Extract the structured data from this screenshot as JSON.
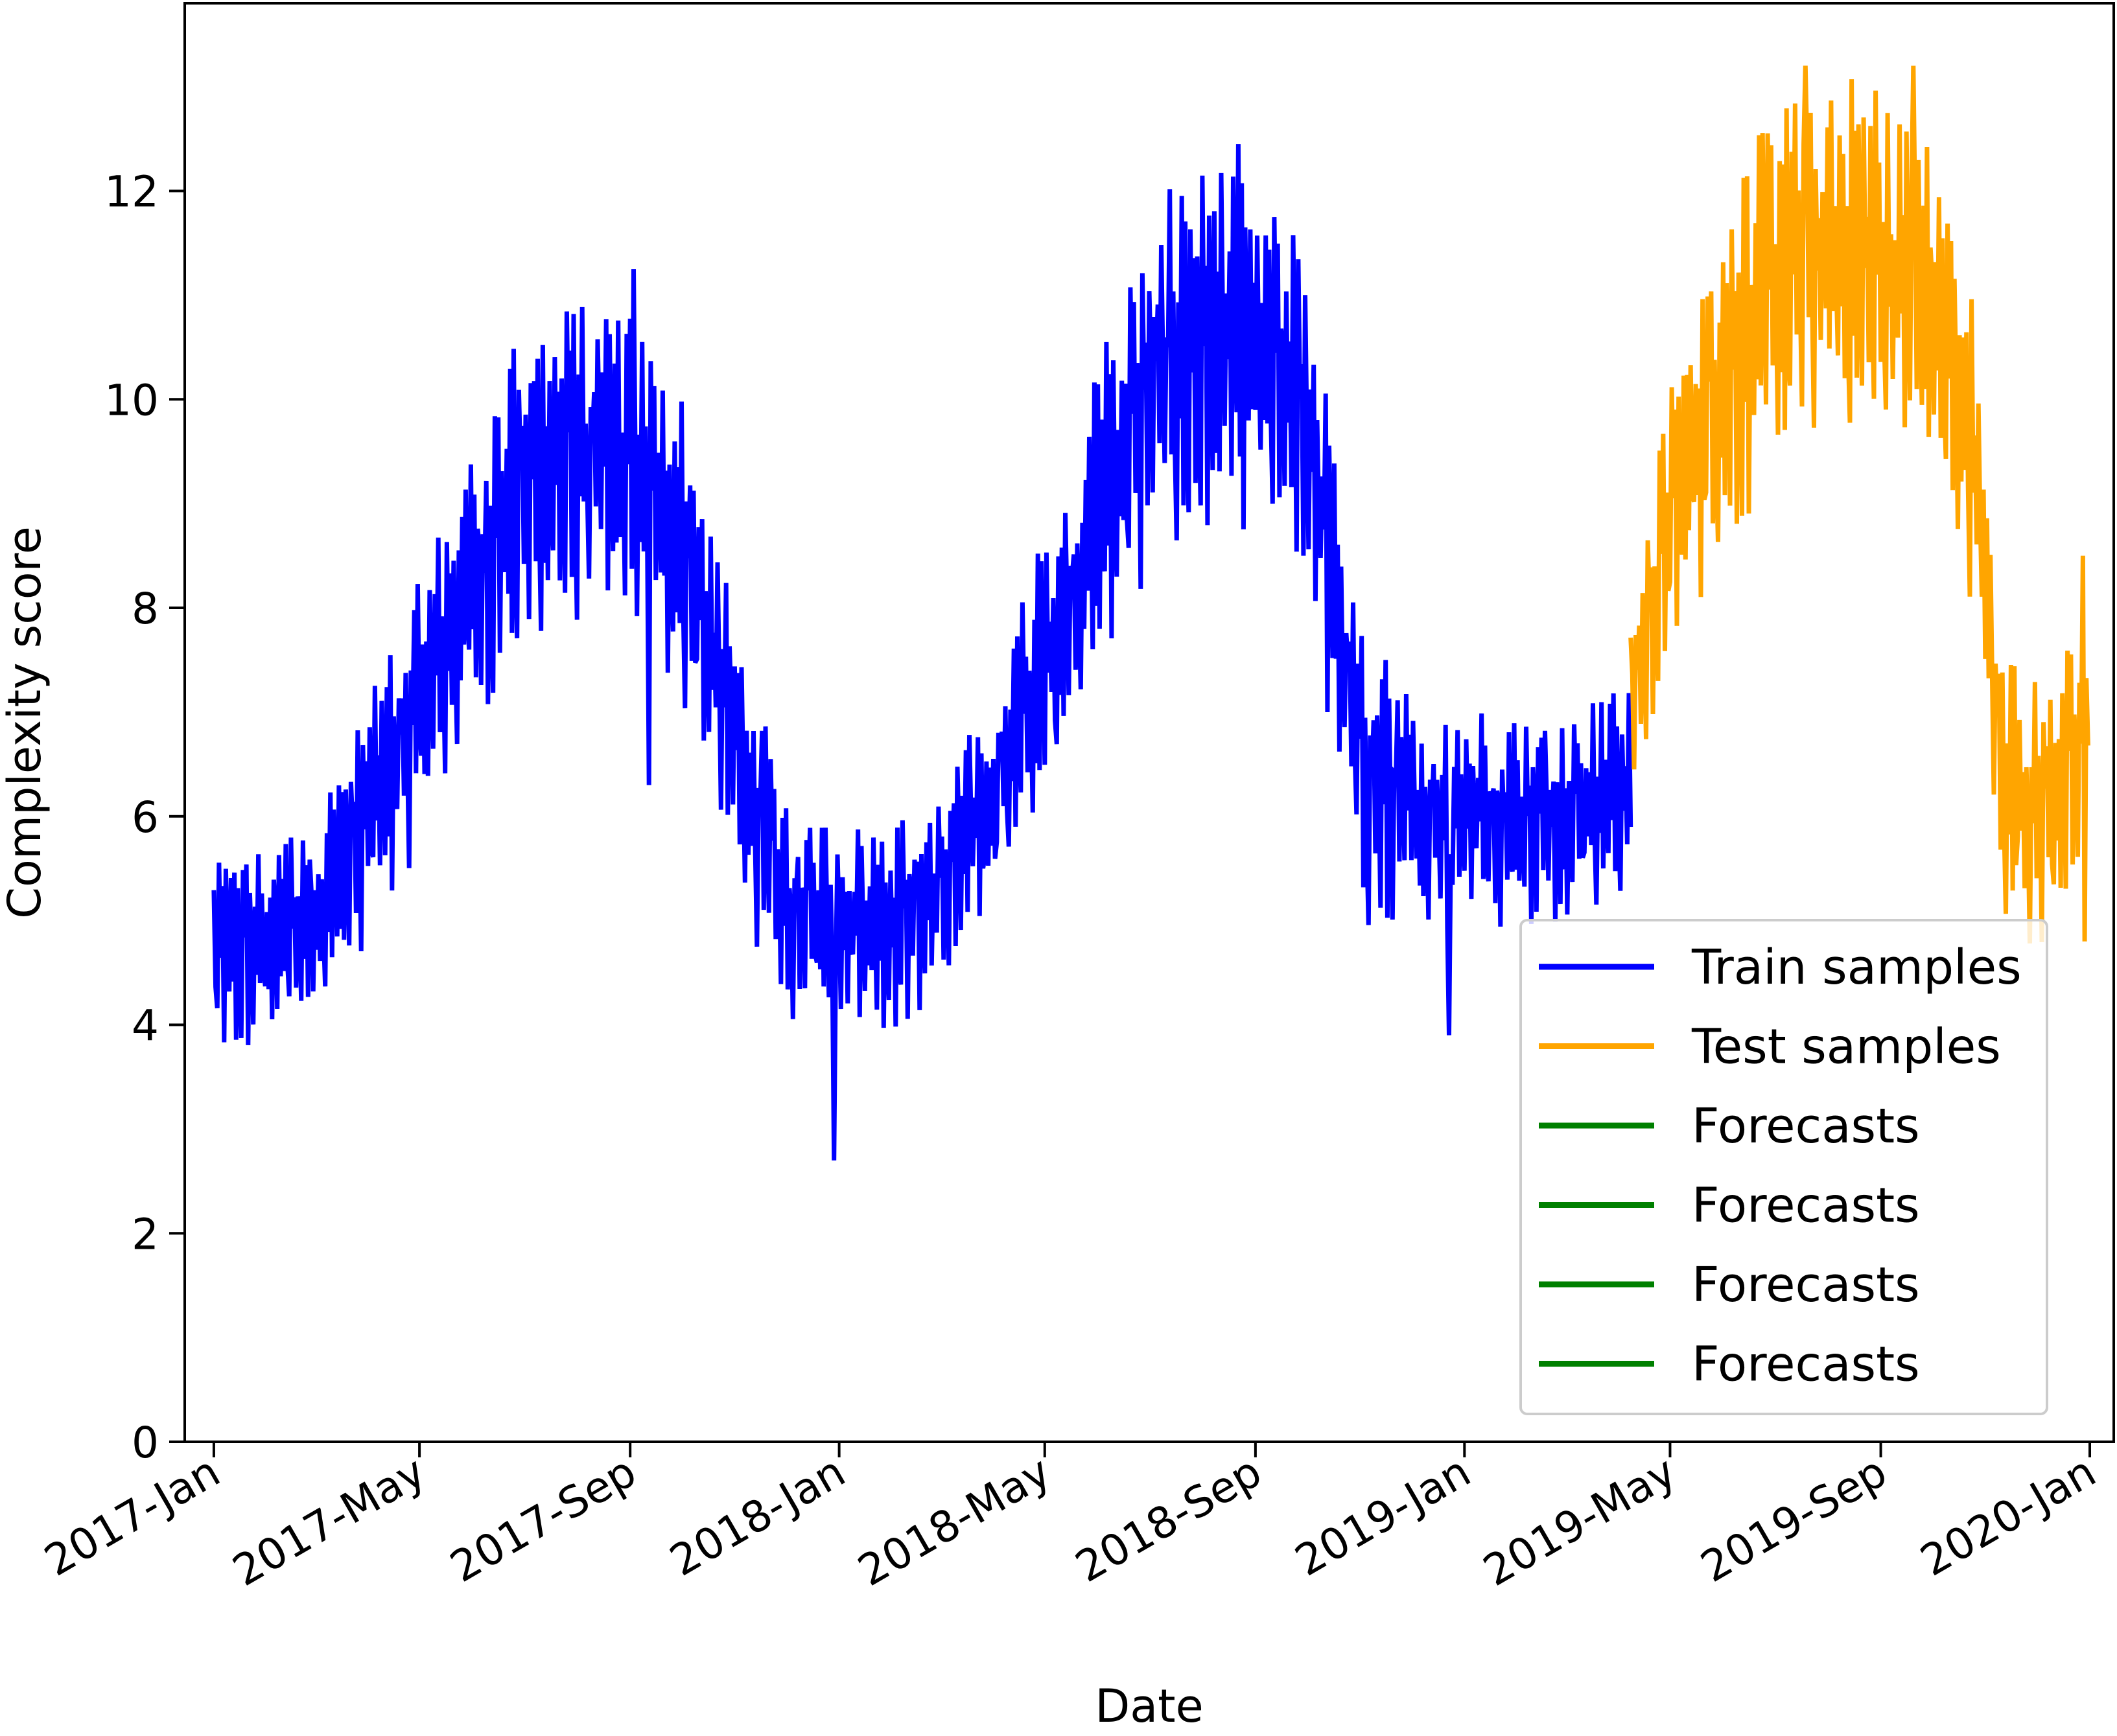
{
  "chart_data": {
    "type": "line",
    "title": "",
    "xlabel": "Date",
    "ylabel": "Complexity score",
    "xlim": [
      "2016-12-15",
      "2020-01-15"
    ],
    "ylim": [
      0,
      13.8
    ],
    "x_ticks": [
      {
        "date": "2017-01-01",
        "label": "2017-Jan"
      },
      {
        "date": "2017-05-01",
        "label": "2017-May"
      },
      {
        "date": "2017-09-01",
        "label": "2017-Sep"
      },
      {
        "date": "2018-01-01",
        "label": "2018-Jan"
      },
      {
        "date": "2018-05-01",
        "label": "2018-May"
      },
      {
        "date": "2018-09-01",
        "label": "2018-Sep"
      },
      {
        "date": "2019-01-01",
        "label": "2019-Jan"
      },
      {
        "date": "2019-05-01",
        "label": "2019-May"
      },
      {
        "date": "2019-09-01",
        "label": "2019-Sep"
      },
      {
        "date": "2020-01-01",
        "label": "2020-Jan"
      }
    ],
    "y_ticks": [
      0,
      2,
      4,
      6,
      8,
      10,
      12
    ],
    "grid": false,
    "legend_position": "lower-right",
    "series": [
      {
        "name": "Train samples",
        "color": "#0000ff",
        "start": "2017-01-01",
        "end": "2019-04-08",
        "pattern": "daily values oscillating with a weekly pattern",
        "trend": [
          {
            "date": "2017-01-01",
            "value": 4.5
          },
          {
            "date": "2017-02-01",
            "value": 4.6
          },
          {
            "date": "2017-03-01",
            "value": 4.9
          },
          {
            "date": "2017-04-01",
            "value": 5.8
          },
          {
            "date": "2017-05-01",
            "value": 6.8
          },
          {
            "date": "2017-06-01",
            "value": 8.0
          },
          {
            "date": "2017-07-01",
            "value": 8.9
          },
          {
            "date": "2017-08-01",
            "value": 9.2
          },
          {
            "date": "2017-09-01",
            "value": 9.1
          },
          {
            "date": "2017-10-01",
            "value": 8.4
          },
          {
            "date": "2017-11-01",
            "value": 6.5
          },
          {
            "date": "2017-12-01",
            "value": 4.9
          },
          {
            "date": "2018-01-01",
            "value": 4.9
          },
          {
            "date": "2018-02-01",
            "value": 4.8
          },
          {
            "date": "2018-03-01",
            "value": 5.1
          },
          {
            "date": "2018-04-01",
            "value": 6.0
          },
          {
            "date": "2018-05-01",
            "value": 7.2
          },
          {
            "date": "2018-06-01",
            "value": 8.6
          },
          {
            "date": "2018-07-01",
            "value": 9.8
          },
          {
            "date": "2018-08-01",
            "value": 10.2
          },
          {
            "date": "2018-09-01",
            "value": 10.1
          },
          {
            "date": "2018-10-01",
            "value": 9.6
          },
          {
            "date": "2018-11-01",
            "value": 6.2
          },
          {
            "date": "2018-12-01",
            "value": 5.8
          },
          {
            "date": "2019-01-01",
            "value": 5.9
          },
          {
            "date": "2019-02-01",
            "value": 5.8
          },
          {
            "date": "2019-03-01",
            "value": 5.9
          },
          {
            "date": "2019-04-08",
            "value": 6.1
          }
        ],
        "spread": [
          {
            "date": "2017-01-01",
            "value": 0.8
          },
          {
            "date": "2017-04-01",
            "value": 1.0
          },
          {
            "date": "2017-07-01",
            "value": 1.4
          },
          {
            "date": "2017-10-01",
            "value": 1.3
          },
          {
            "date": "2018-01-01",
            "value": 0.8
          },
          {
            "date": "2018-04-01",
            "value": 1.0
          },
          {
            "date": "2018-07-01",
            "value": 1.6
          },
          {
            "date": "2018-10-01",
            "value": 1.5
          },
          {
            "date": "2019-01-01",
            "value": 0.9
          },
          {
            "date": "2019-04-08",
            "value": 0.9
          }
        ],
        "extremes": [
          {
            "date": "2017-09-03",
            "value": 11.25
          },
          {
            "date": "2017-09-12",
            "value": 6.3
          },
          {
            "date": "2017-12-29",
            "value": 2.7
          },
          {
            "date": "2018-08-22",
            "value": 12.45
          },
          {
            "date": "2018-12-23",
            "value": 3.9
          }
        ]
      },
      {
        "name": "Test samples",
        "color": "#ffa500",
        "start": "2019-04-08",
        "end": "2019-12-31",
        "pattern": "daily values oscillating with a weekly pattern",
        "trend": [
          {
            "date": "2019-04-08",
            "value": 6.9
          },
          {
            "date": "2019-05-01",
            "value": 8.6
          },
          {
            "date": "2019-06-01",
            "value": 10.0
          },
          {
            "date": "2019-07-01",
            "value": 10.8
          },
          {
            "date": "2019-08-01",
            "value": 11.1
          },
          {
            "date": "2019-09-01",
            "value": 11.0
          },
          {
            "date": "2019-10-01",
            "value": 10.6
          },
          {
            "date": "2019-10-25",
            "value": 9.3
          },
          {
            "date": "2019-11-10",
            "value": 6.2
          },
          {
            "date": "2019-12-01",
            "value": 5.8
          },
          {
            "date": "2019-12-31",
            "value": 6.4
          }
        ],
        "spread": [
          {
            "date": "2019-04-08",
            "value": 0.9
          },
          {
            "date": "2019-06-01",
            "value": 1.5
          },
          {
            "date": "2019-09-01",
            "value": 1.6
          },
          {
            "date": "2019-11-10",
            "value": 1.2
          },
          {
            "date": "2019-12-31",
            "value": 1.1
          }
        ],
        "extremes": [
          {
            "date": "2019-07-19",
            "value": 13.2
          },
          {
            "date": "2019-09-20",
            "value": 13.2
          },
          {
            "date": "2019-12-28",
            "value": 8.5
          },
          {
            "date": "2019-12-29",
            "value": 4.8
          }
        ]
      },
      {
        "name": "Forecasts",
        "color": "#008000",
        "values": []
      },
      {
        "name": "Forecasts",
        "color": "#008000",
        "values": []
      },
      {
        "name": "Forecasts",
        "color": "#008000",
        "values": []
      },
      {
        "name": "Forecasts",
        "color": "#008000",
        "values": []
      }
    ]
  }
}
